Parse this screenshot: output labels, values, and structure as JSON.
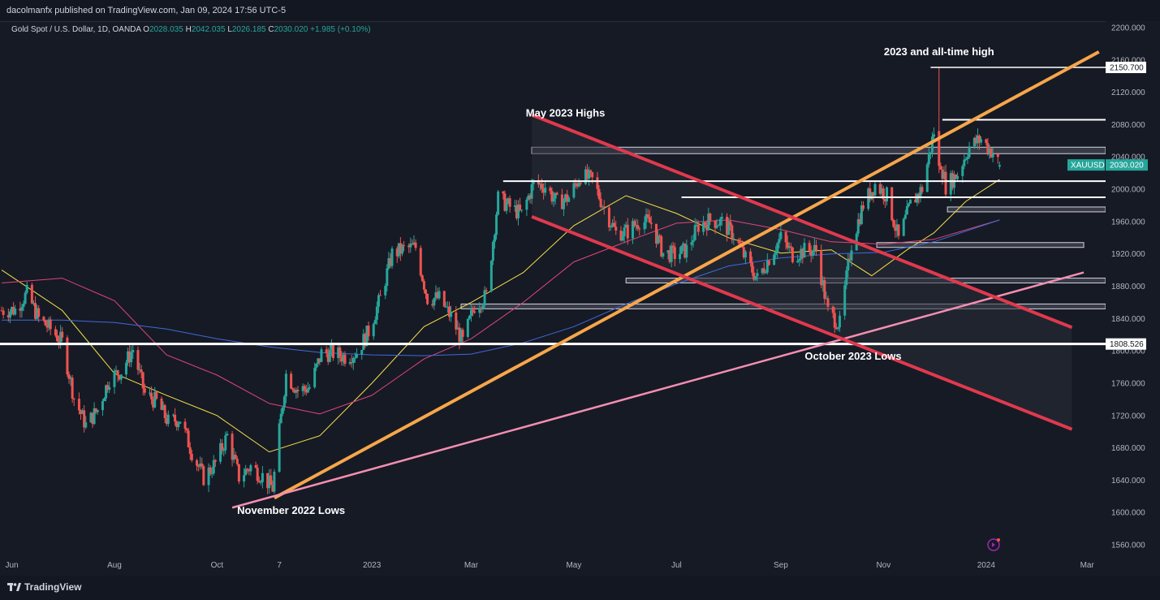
{
  "header": {
    "publish_line": "dacolmanfx published on TradingView.com, Jan 09, 2024 17:56 UTC-5"
  },
  "legend": {
    "symbol": "Gold Spot / U.S. Dollar, 1D, OANDA",
    "o_label": "O",
    "o": "2028.035",
    "h_label": "H",
    "h": "2042.035",
    "l_label": "L",
    "l": "2026.185",
    "c_label": "C",
    "c": "2030.020",
    "change": "+1.985 (+0.10%)"
  },
  "footer": {
    "brand": "TradingView"
  },
  "colors": {
    "background": "#161a25",
    "up": "#26a69a",
    "down": "#ef5350",
    "trendline_orange": "#f7a64a",
    "channel_red": "#e0394e",
    "trendline_pink": "#f48fb1",
    "ma50": "#f5e04a",
    "ma100": "#e0457b",
    "ma200": "#3e6bd8",
    "price_tag": "#26a69a"
  },
  "chart_data": {
    "type": "candlestick",
    "symbol": "XAUUSD",
    "timeframe": "1D",
    "x_ticks": [
      "Jun",
      "Aug",
      "Oct",
      "7",
      "2023",
      "Mar",
      "May",
      "Jul",
      "Sep",
      "Nov",
      "2024",
      "Mar"
    ],
    "x_tick_dates": [
      "2022-06-01",
      "2022-08-01",
      "2022-10-01",
      "2022-11-07",
      "2023-01-01",
      "2023-03-01",
      "2023-05-01",
      "2023-07-01",
      "2023-09-01",
      "2023-11-01",
      "2024-01-01",
      "2024-03-01"
    ],
    "y_ticks": [
      "1560.000",
      "1600.000",
      "1640.000",
      "1680.000",
      "1720.000",
      "1760.000",
      "1800.000",
      "1840.000",
      "1880.000",
      "1920.000",
      "1960.000",
      "2000.000",
      "2040.000",
      "2080.000",
      "2120.000",
      "2160.000",
      "2200.000"
    ],
    "ylim": [
      1548,
      2208
    ],
    "xlim": [
      "2022-05-25",
      "2024-03-12"
    ],
    "last_price": {
      "label": "XAUUSD",
      "value": "2030.020"
    },
    "price_labels": [
      {
        "value": "2150.700",
        "y": 2150.7
      },
      {
        "value": "1808.526",
        "y": 1808.5
      }
    ],
    "annotations": [
      {
        "text": "2023 and all-time high",
        "date": "2023-12-04",
        "y": 2166
      },
      {
        "text": "May 2023 Highs",
        "date": "2023-04-26",
        "y": 2090
      },
      {
        "text": "October 2023 Lows",
        "date": "2023-10-14",
        "y": 1789
      },
      {
        "text": "November 2022 Lows",
        "date": "2022-11-14",
        "y": 1598
      }
    ],
    "close_series": [
      [
        "2022-05-26",
        1850
      ],
      [
        "2022-06-03",
        1851
      ],
      [
        "2022-06-10",
        1871
      ],
      [
        "2022-06-17",
        1840
      ],
      [
        "2022-06-24",
        1827
      ],
      [
        "2022-07-01",
        1811
      ],
      [
        "2022-07-08",
        1742
      ],
      [
        "2022-07-15",
        1708
      ],
      [
        "2022-07-22",
        1727
      ],
      [
        "2022-07-29",
        1766
      ],
      [
        "2022-08-05",
        1775
      ],
      [
        "2022-08-12",
        1802
      ],
      [
        "2022-08-19",
        1747
      ],
      [
        "2022-08-26",
        1737
      ],
      [
        "2022-09-02",
        1712
      ],
      [
        "2022-09-09",
        1716
      ],
      [
        "2022-09-16",
        1675
      ],
      [
        "2022-09-23",
        1643
      ],
      [
        "2022-09-30",
        1661
      ],
      [
        "2022-10-07",
        1695
      ],
      [
        "2022-10-14",
        1644
      ],
      [
        "2022-10-21",
        1657
      ],
      [
        "2022-10-28",
        1645
      ],
      [
        "2022-11-03",
        1630
      ],
      [
        "2022-11-11",
        1771
      ],
      [
        "2022-11-18",
        1751
      ],
      [
        "2022-11-25",
        1755
      ],
      [
        "2022-12-02",
        1797
      ],
      [
        "2022-12-09",
        1797
      ],
      [
        "2022-12-16",
        1793
      ],
      [
        "2022-12-23",
        1798
      ],
      [
        "2022-12-30",
        1824
      ],
      [
        "2023-01-06",
        1865
      ],
      [
        "2023-01-13",
        1920
      ],
      [
        "2023-01-20",
        1926
      ],
      [
        "2023-01-27",
        1928
      ],
      [
        "2023-02-03",
        1865
      ],
      [
        "2023-02-10",
        1865
      ],
      [
        "2023-02-17",
        1842
      ],
      [
        "2023-02-24",
        1811
      ],
      [
        "2023-03-03",
        1856
      ],
      [
        "2023-03-10",
        1868
      ],
      [
        "2023-03-17",
        1989
      ],
      [
        "2023-03-24",
        1978
      ],
      [
        "2023-03-31",
        1969
      ],
      [
        "2023-04-07",
        2007
      ],
      [
        "2023-04-14",
        2004
      ],
      [
        "2023-04-21",
        1983
      ],
      [
        "2023-04-28",
        1990
      ],
      [
        "2023-05-05",
        2017
      ],
      [
        "2023-05-12",
        2011
      ],
      [
        "2023-05-19",
        1977
      ],
      [
        "2023-05-26",
        1946
      ],
      [
        "2023-06-02",
        1948
      ],
      [
        "2023-06-09",
        1961
      ],
      [
        "2023-06-16",
        1958
      ],
      [
        "2023-06-23",
        1921
      ],
      [
        "2023-06-30",
        1919
      ],
      [
        "2023-07-07",
        1925
      ],
      [
        "2023-07-14",
        1955
      ],
      [
        "2023-07-21",
        1962
      ],
      [
        "2023-07-28",
        1959
      ],
      [
        "2023-08-04",
        1943
      ],
      [
        "2023-08-11",
        1914
      ],
      [
        "2023-08-18",
        1889
      ],
      [
        "2023-08-25",
        1915
      ],
      [
        "2023-09-01",
        1940
      ],
      [
        "2023-09-08",
        1919
      ],
      [
        "2023-09-15",
        1924
      ],
      [
        "2023-09-22",
        1925
      ],
      [
        "2023-09-29",
        1848
      ],
      [
        "2023-10-06",
        1833
      ],
      [
        "2023-10-13",
        1933
      ],
      [
        "2023-10-20",
        1981
      ],
      [
        "2023-10-27",
        2006
      ],
      [
        "2023-11-03",
        1992
      ],
      [
        "2023-11-10",
        1938
      ],
      [
        "2023-11-17",
        1981
      ],
      [
        "2023-11-24",
        2001
      ],
      [
        "2023-12-01",
        2071
      ],
      [
        "2023-12-08",
        2004
      ],
      [
        "2023-12-15",
        2019
      ],
      [
        "2023-12-22",
        2053
      ],
      [
        "2023-12-29",
        2062
      ],
      [
        "2024-01-05",
        2045
      ],
      [
        "2024-01-09",
        2030
      ]
    ],
    "ohlc_last": {
      "open": 2028.035,
      "high": 2042.035,
      "low": 2026.185,
      "close": 2030.02,
      "change": 1.985,
      "change_pct": 0.1
    },
    "all_time_high": 2150.7,
    "moving_averages": [
      {
        "period": 50,
        "color": "#f5e04a",
        "points": [
          [
            "2022-05-26",
            1900
          ],
          [
            "2022-07-01",
            1850
          ],
          [
            "2022-08-01",
            1772
          ],
          [
            "2022-09-01",
            1745
          ],
          [
            "2022-10-01",
            1720
          ],
          [
            "2022-11-01",
            1675
          ],
          [
            "2022-12-01",
            1695
          ],
          [
            "2023-01-01",
            1760
          ],
          [
            "2023-02-01",
            1830
          ],
          [
            "2023-03-01",
            1860
          ],
          [
            "2023-04-01",
            1897
          ],
          [
            "2023-05-01",
            1955
          ],
          [
            "2023-06-01",
            1992
          ],
          [
            "2023-07-01",
            1970
          ],
          [
            "2023-08-01",
            1940
          ],
          [
            "2023-09-01",
            1921
          ],
          [
            "2023-10-01",
            1925
          ],
          [
            "2023-10-25",
            1893
          ],
          [
            "2023-11-15",
            1925
          ],
          [
            "2023-12-01",
            1946
          ],
          [
            "2023-12-20",
            1985
          ],
          [
            "2024-01-09",
            2012
          ]
        ]
      },
      {
        "period": 100,
        "color": "#e0457b",
        "points": [
          [
            "2022-05-26",
            1884
          ],
          [
            "2022-07-01",
            1890
          ],
          [
            "2022-08-01",
            1862
          ],
          [
            "2022-09-01",
            1795
          ],
          [
            "2022-10-01",
            1770
          ],
          [
            "2022-11-01",
            1735
          ],
          [
            "2022-12-01",
            1722
          ],
          [
            "2023-01-01",
            1745
          ],
          [
            "2023-02-01",
            1790
          ],
          [
            "2023-03-01",
            1815
          ],
          [
            "2023-04-01",
            1860
          ],
          [
            "2023-05-01",
            1910
          ],
          [
            "2023-06-01",
            1935
          ],
          [
            "2023-07-01",
            1958
          ],
          [
            "2023-08-01",
            1962
          ],
          [
            "2023-09-01",
            1950
          ],
          [
            "2023-10-01",
            1935
          ],
          [
            "2023-11-01",
            1932
          ],
          [
            "2023-12-01",
            1938
          ],
          [
            "2024-01-09",
            1962
          ]
        ]
      },
      {
        "period": 200,
        "color": "#3e6bd8",
        "points": [
          [
            "2022-05-26",
            1838
          ],
          [
            "2022-07-01",
            1838
          ],
          [
            "2022-08-01",
            1835
          ],
          [
            "2022-09-01",
            1827
          ],
          [
            "2022-10-01",
            1815
          ],
          [
            "2022-11-01",
            1805
          ],
          [
            "2022-12-01",
            1798
          ],
          [
            "2023-01-01",
            1795
          ],
          [
            "2023-02-01",
            1794
          ],
          [
            "2023-03-01",
            1796
          ],
          [
            "2023-04-01",
            1810
          ],
          [
            "2023-05-01",
            1830
          ],
          [
            "2023-06-01",
            1858
          ],
          [
            "2023-07-01",
            1883
          ],
          [
            "2023-08-01",
            1905
          ],
          [
            "2023-09-01",
            1915
          ],
          [
            "2023-10-01",
            1920
          ],
          [
            "2023-11-01",
            1922
          ],
          [
            "2023-12-01",
            1935
          ],
          [
            "2024-01-09",
            1962
          ]
        ]
      }
    ],
    "trendlines": [
      {
        "name": "Rising support from November 2022 lows",
        "color": "#f7a64a",
        "from": [
          "2022-11-04",
          1618
        ],
        "to": [
          "2024-03-08",
          2170
        ]
      },
      {
        "name": "Long-term rising trendline",
        "color": "#f48fb1",
        "from": [
          "2022-10-10",
          1606
        ],
        "to": [
          "2024-02-28",
          1897
        ]
      },
      {
        "name": "Descending channel upper",
        "color": "#e0394e",
        "from": [
          "2023-04-06",
          2092
        ],
        "to": [
          "2024-02-21",
          1829
        ]
      },
      {
        "name": "Descending channel lower",
        "color": "#e0394e",
        "from": [
          "2023-04-06",
          1966
        ],
        "to": [
          "2024-02-21",
          1703
        ]
      }
    ],
    "horizontal_levels": [
      {
        "y": 1808.5,
        "from": "2022-05-25",
        "to": "2024-03-12",
        "color": "#ffffff",
        "width": 3
      },
      {
        "y": 2010,
        "from": "2023-03-20",
        "to": "2024-03-12",
        "color": "#ffffff",
        "width": 2
      },
      {
        "y": 2150.7,
        "from": "2023-11-29",
        "to": "2024-03-12",
        "color": "#ffffff",
        "width": 1.5
      },
      {
        "y": 2086,
        "from": "2023-12-06",
        "to": "2024-03-12",
        "color": "#ffffff",
        "width": 2
      },
      {
        "y": 1990,
        "from": "2023-07-04",
        "to": "2024-03-12",
        "color": "#ffffff",
        "width": 2
      }
    ],
    "zones": [
      {
        "from": "2023-04-06",
        "to": "2024-03-12",
        "y1": 2044,
        "y2": 2052
      },
      {
        "from": "2023-12-09",
        "to": "2024-03-12",
        "y1": 1972,
        "y2": 1978
      },
      {
        "from": "2023-10-28",
        "to": "2024-02-28",
        "y1": 1928,
        "y2": 1934
      },
      {
        "from": "2023-06-01",
        "to": "2024-03-12",
        "y1": 1884,
        "y2": 1890
      },
      {
        "from": "2023-02-23",
        "to": "2024-03-12",
        "y1": 1852,
        "y2": 1858
      }
    ]
  }
}
